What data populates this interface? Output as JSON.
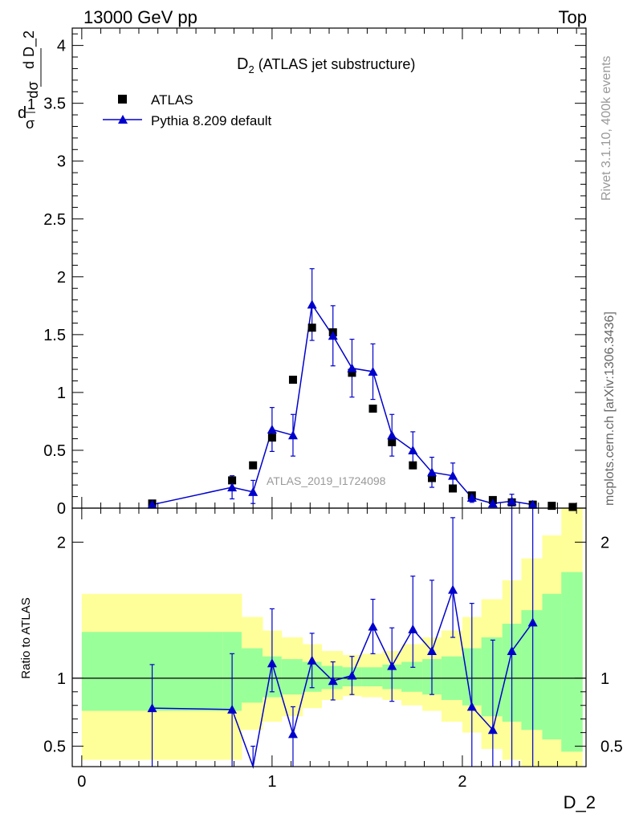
{
  "header": {
    "beam": "13000 GeV pp",
    "process": "Top"
  },
  "side_labels": {
    "rivet": "Rivet 3.1.10,  400k events",
    "site": "mcplots.cern.ch [arXiv:1306.3436]"
  },
  "watermark": "ATLAS_2019_I1724098",
  "legend": {
    "data_label": "ATLAS",
    "mc_label": "Pythia 8.209 default"
  },
  "colors": {
    "data": "#000000",
    "mc": "#0000cc",
    "band_inner": "#99ff99",
    "band_outer": "#ffff99",
    "watermark": "#999999"
  },
  "chart_data": [
    {
      "type": "scatter",
      "title_main": "D",
      "title_sub": "2",
      "title_rest": " (ATLAS jet substructure)",
      "xlabel": "D_2",
      "ylabel_parts": [
        "d",
        "1",
        "σ",
        "dσ",
        "d D_2"
      ],
      "xlim": [
        -0.05,
        2.65
      ],
      "ylim": [
        0,
        4.15
      ],
      "yticks": [
        0,
        0.5,
        1,
        1.5,
        2,
        2.5,
        3,
        3.5,
        4
      ],
      "ytick_labels": [
        "0",
        "0.5",
        "1",
        "1.5",
        "2",
        "2.5",
        "3",
        "3.5",
        "4"
      ],
      "series": [
        {
          "name": "ATLAS",
          "marker": "square",
          "x": [
            0.37,
            0.79,
            0.9,
            1.0,
            1.11,
            1.21,
            1.32,
            1.42,
            1.53,
            1.63,
            1.74,
            1.84,
            1.95,
            2.05,
            2.16,
            2.26,
            2.37,
            2.47,
            2.58
          ],
          "y": [
            0.04,
            0.24,
            0.37,
            0.61,
            1.11,
            1.56,
            1.52,
            1.17,
            0.86,
            0.57,
            0.37,
            0.26,
            0.17,
            0.11,
            0.07,
            0.05,
            0.03,
            0.02,
            0.01
          ]
        },
        {
          "name": "Pythia 8.209 default",
          "marker": "triangle",
          "x": [
            0.37,
            0.79,
            0.9,
            1.0,
            1.11,
            1.21,
            1.32,
            1.42,
            1.53,
            1.63,
            1.74,
            1.84,
            1.95,
            2.05,
            2.16,
            2.26,
            2.37
          ],
          "y": [
            0.03,
            0.18,
            0.14,
            0.68,
            0.63,
            1.76,
            1.49,
            1.21,
            1.18,
            0.63,
            0.5,
            0.31,
            0.28,
            0.09,
            0.04,
            0.06,
            0.03
          ],
          "yerr": [
            0.01,
            0.1,
            0.1,
            0.19,
            0.18,
            0.31,
            0.26,
            0.25,
            0.24,
            0.18,
            0.16,
            0.13,
            0.11,
            0.04,
            0.03,
            0.06,
            0.03
          ]
        }
      ]
    },
    {
      "type": "line",
      "ylabel": "Ratio to ATLAS",
      "xlabel": "D_2",
      "xlim": [
        -0.05,
        2.65
      ],
      "ylim": [
        0.35,
        2.25
      ],
      "xticks": [
        0,
        1,
        2
      ],
      "xtick_labels": [
        "0",
        "1",
        "2"
      ],
      "yticks": [
        0.5,
        1,
        2
      ],
      "ytick_labels": [
        "0.5",
        "1",
        "2"
      ],
      "reference_line": 1.0,
      "bands": {
        "edges": [
          0.0,
          0.74,
          0.84,
          0.95,
          1.05,
          1.16,
          1.26,
          1.37,
          1.47,
          1.58,
          1.68,
          1.79,
          1.89,
          2.0,
          2.1,
          2.21,
          2.31,
          2.42,
          2.52,
          2.63
        ],
        "inner_low": [
          0.76,
          0.76,
          0.82,
          0.86,
          0.88,
          0.9,
          0.92,
          0.94,
          0.94,
          0.92,
          0.9,
          0.88,
          0.84,
          0.8,
          0.72,
          0.68,
          0.62,
          0.55,
          0.46
        ],
        "inner_high": [
          1.34,
          1.34,
          1.22,
          1.16,
          1.14,
          1.12,
          1.09,
          1.08,
          1.08,
          1.1,
          1.12,
          1.14,
          1.16,
          1.22,
          1.3,
          1.4,
          1.5,
          1.62,
          1.78
        ],
        "outer_low": [
          0.4,
          0.4,
          0.62,
          0.68,
          0.72,
          0.78,
          0.84,
          0.87,
          0.86,
          0.84,
          0.8,
          0.76,
          0.68,
          0.6,
          0.48,
          0.4,
          0.35,
          0.35,
          0.35
        ],
        "outer_high": [
          1.62,
          1.62,
          1.45,
          1.35,
          1.3,
          1.25,
          1.2,
          1.17,
          1.18,
          1.2,
          1.25,
          1.3,
          1.35,
          1.45,
          1.58,
          1.72,
          1.88,
          2.05,
          2.25
        ]
      },
      "series": [
        {
          "name": "Pythia 8.209 default / ATLAS",
          "x": [
            0.37,
            0.79,
            0.9,
            1.0,
            1.11,
            1.21,
            1.32,
            1.42,
            1.53,
            1.63,
            1.74,
            1.84,
            1.95,
            2.05,
            2.16,
            2.26,
            2.37
          ],
          "y": [
            0.78,
            0.77,
            0.33,
            1.11,
            0.59,
            1.13,
            0.98,
            1.02,
            1.38,
            1.09,
            1.36,
            1.2,
            1.65,
            0.79,
            0.62,
            1.2,
            1.41
          ],
          "ylow": [
            0.3,
            0.3,
            0.3,
            0.9,
            0.3,
            0.93,
            0.84,
            0.88,
            1.18,
            0.83,
            1.08,
            0.88,
            1.3,
            0.3,
            0.3,
            0.3,
            0.3
          ],
          "yhigh": [
            1.1,
            1.18,
            0.5,
            1.51,
            0.79,
            1.33,
            1.12,
            1.16,
            1.58,
            1.37,
            1.75,
            1.72,
            2.18,
            1.55,
            1.28,
            2.4,
            2.4
          ]
        }
      ]
    }
  ]
}
